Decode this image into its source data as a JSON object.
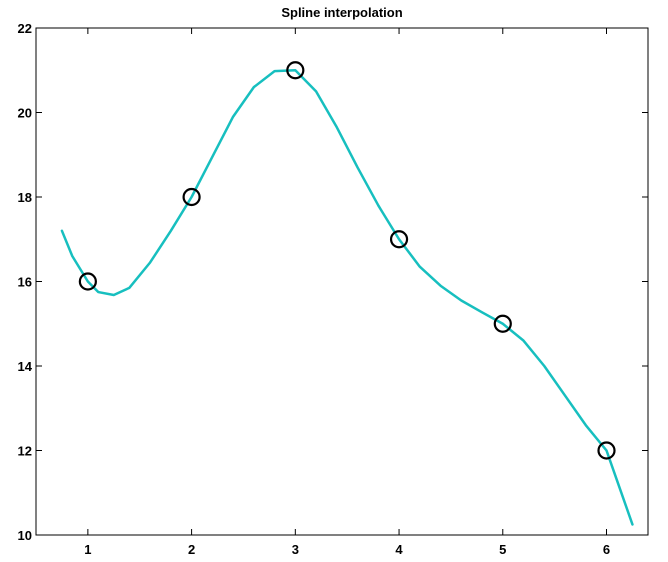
{
  "chart_data": {
    "type": "line",
    "title": "Spline interpolation",
    "xlabel": "",
    "ylabel": "",
    "xlim": [
      0.5,
      6.4
    ],
    "ylim": [
      10,
      22
    ],
    "grid": false,
    "x_ticks": [
      1,
      2,
      3,
      4,
      5,
      6
    ],
    "y_ticks": [
      10,
      12,
      14,
      16,
      18,
      20,
      22
    ],
    "series": [
      {
        "kind": "markers",
        "marker": "circle",
        "color": "#000000",
        "x": [
          1,
          2,
          3,
          4,
          5,
          6
        ],
        "y": [
          16,
          18,
          21,
          17,
          15,
          12
        ]
      },
      {
        "kind": "line",
        "color": "#17bfbf",
        "x": [
          0.75,
          0.85,
          1.0,
          1.1,
          1.25,
          1.4,
          1.6,
          1.8,
          2.0,
          2.2,
          2.4,
          2.6,
          2.8,
          3.0,
          3.2,
          3.4,
          3.6,
          3.8,
          4.0,
          4.2,
          4.4,
          4.6,
          4.8,
          5.0,
          5.2,
          5.4,
          5.6,
          5.8,
          6.0,
          6.1,
          6.25
        ],
        "y": [
          17.2,
          16.6,
          16.0,
          15.75,
          15.68,
          15.85,
          16.45,
          17.2,
          18.0,
          18.95,
          19.9,
          20.6,
          20.98,
          21.0,
          20.5,
          19.65,
          18.7,
          17.8,
          17.0,
          16.35,
          15.9,
          15.55,
          15.27,
          15.0,
          14.6,
          14.0,
          13.3,
          12.6,
          12.0,
          11.3,
          10.25
        ]
      }
    ]
  }
}
